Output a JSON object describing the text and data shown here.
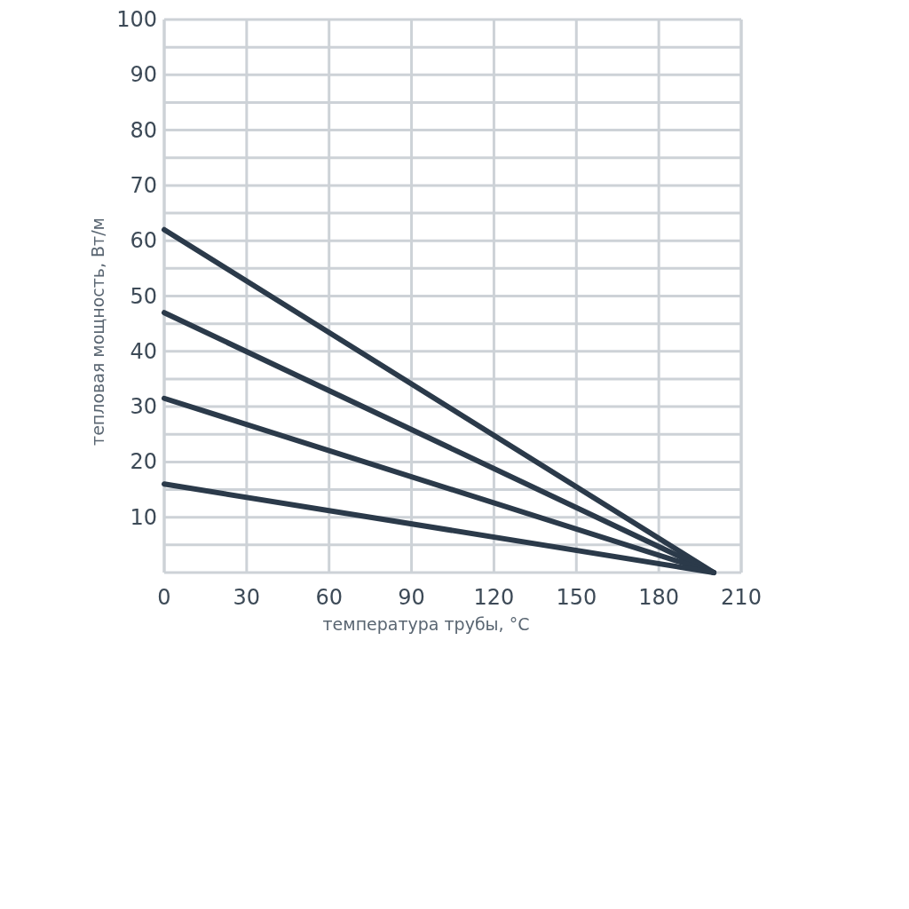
{
  "chart_data": {
    "type": "line",
    "xlabel": "температура трубы, °C",
    "ylabel": "тепловая мощность, Вт/м",
    "xlim": [
      0,
      210
    ],
    "xticks": [
      0,
      30,
      60,
      90,
      120,
      150,
      180,
      210
    ],
    "ylim": [
      0,
      100
    ],
    "yticks": [
      {
        "value": 5,
        "label": null
      },
      10,
      {
        "value": 15,
        "label": null
      },
      20,
      {
        "value": 25,
        "label": null
      },
      30,
      {
        "value": 35,
        "label": null
      },
      40,
      {
        "value": 45,
        "label": null
      },
      50,
      {
        "value": 55,
        "label": null
      },
      60,
      {
        "value": 65,
        "label": null
      },
      70,
      {
        "value": 75,
        "label": null
      },
      80,
      {
        "value": 85,
        "label": null
      },
      90,
      {
        "value": 95,
        "label": null
      },
      100
    ],
    "x": [
      0,
      200
    ],
    "grid": true,
    "marker": "none",
    "line_style": "solid",
    "series": [
      {
        "color": "#2b3a4a",
        "values": [
          62,
          0
        ]
      },
      {
        "color": "#2b3a4a",
        "values": [
          47,
          0
        ]
      },
      {
        "color": "#2b3a4a",
        "values": [
          31.5,
          0
        ]
      },
      {
        "color": "#2b3a4a",
        "values": [
          16,
          0
        ]
      }
    ]
  }
}
